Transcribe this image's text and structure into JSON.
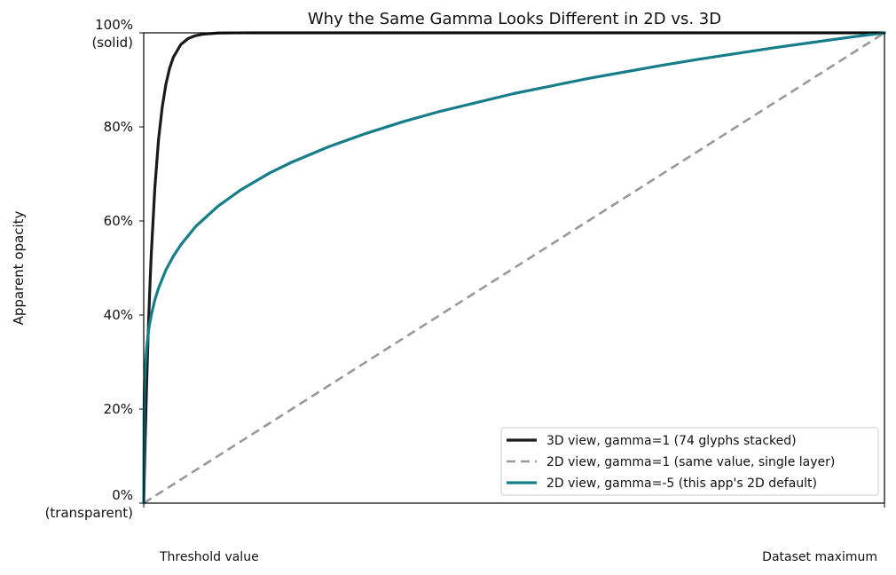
{
  "chart_data": {
    "type": "line",
    "title": "Why the Same Gamma Looks Different in 2D vs. 3D",
    "ylabel": "Apparent opacity",
    "xlabel": "",
    "x_tick_labels": [
      "Threshold value",
      "Dataset maximum"
    ],
    "x_range": [
      0,
      1
    ],
    "ylim": [
      0,
      100
    ],
    "y_ticks": [
      {
        "value": 0,
        "label": "0%",
        "sublabel": "(transparent)"
      },
      {
        "value": 20,
        "label": "20%"
      },
      {
        "value": 40,
        "label": "40%"
      },
      {
        "value": 60,
        "label": "60%"
      },
      {
        "value": 80,
        "label": "80%"
      },
      {
        "value": 100,
        "label": "100%",
        "sublabel": "(solid)"
      }
    ],
    "grid": false,
    "legend_position": "bottom-right",
    "series": [
      {
        "name": "3D view, gamma=1 (74 glyphs stacked)",
        "color": "#1a1a1a",
        "dash": "solid",
        "x": [
          0,
          0.002,
          0.004,
          0.006,
          0.008,
          0.01,
          0.015,
          0.02,
          0.025,
          0.03,
          0.035,
          0.04,
          0.05,
          0.06,
          0.07,
          0.08,
          0.1,
          0.12,
          0.15,
          0.2,
          0.3,
          0.5,
          0.75,
          1.0
        ],
        "values": [
          0,
          13.8,
          25.6,
          35.9,
          44.7,
          52.3,
          67.0,
          77.3,
          84.2,
          89.1,
          92.5,
          94.8,
          97.5,
          98.8,
          99.4,
          99.7,
          99.95,
          99.99,
          100,
          100,
          100,
          100,
          100,
          100
        ]
      },
      {
        "name": "2D view, gamma=1 (same value, single layer)",
        "color": "#999999",
        "dash": "dashed",
        "x": [
          0,
          1
        ],
        "values": [
          0,
          100
        ]
      },
      {
        "name": "2D view, gamma=-5 (this app's 2D default)",
        "color": "#177e89",
        "dash": "solid",
        "x": [
          0,
          0.0005,
          0.001,
          0.002,
          0.004,
          0.007,
          0.01,
          0.015,
          0.02,
          0.03,
          0.04,
          0.05,
          0.07,
          0.1,
          0.13,
          0.17,
          0.2,
          0.25,
          0.3,
          0.35,
          0.4,
          0.45,
          0.5,
          0.55,
          0.6,
          0.65,
          0.7,
          0.75,
          0.8,
          0.85,
          0.9,
          0.95,
          1.0
        ],
        "values": [
          0,
          21.9,
          25.1,
          28.9,
          33.1,
          37.2,
          39.8,
          43.2,
          45.7,
          49.6,
          52.5,
          54.9,
          58.8,
          63.1,
          66.5,
          70.2,
          72.5,
          75.8,
          78.6,
          81.1,
          83.3,
          85.2,
          87.1,
          88.7,
          90.3,
          91.7,
          93.1,
          94.4,
          95.6,
          96.8,
          97.9,
          99.0,
          100
        ]
      }
    ]
  }
}
